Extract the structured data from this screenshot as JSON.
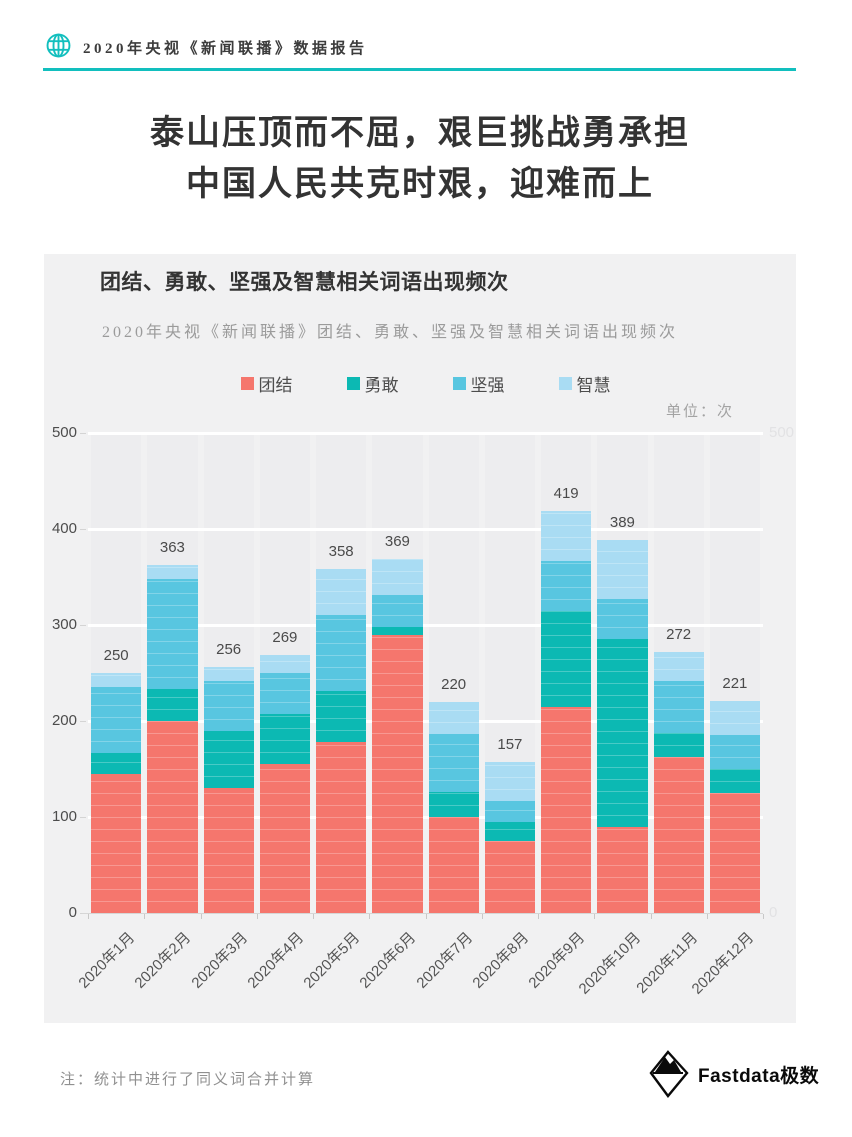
{
  "header": {
    "brand": "2020年央视《新闻联播》数据报告"
  },
  "title": {
    "line1": "泰山压顶而不屈，艰巨挑战勇承担",
    "line2": "中国人民共克时艰，迎难而上"
  },
  "panel": {
    "title": "团结、勇敢、坚强及智慧相关词语出现频次",
    "subtitle": "2020年央视《新闻联播》团结、勇敢、坚强及智慧相关词语出现频次",
    "unit_label": "单位：次"
  },
  "chart_data": {
    "type": "bar",
    "stacked": true,
    "title": "团结、勇敢、坚强及智慧相关词语出现频次",
    "subtitle": "2020年央视《新闻联播》团结、勇敢、坚强及智慧相关词语出现频次",
    "unit": "次",
    "categories": [
      "2020年1月",
      "2020年2月",
      "2020年3月",
      "2020年4月",
      "2020年5月",
      "2020年6月",
      "2020年7月",
      "2020年8月",
      "2020年9月",
      "2020年10月",
      "2020年11月",
      "2020年12月"
    ],
    "series": [
      {
        "name": "团结",
        "color": "#f5766d",
        "values": [
          145,
          200,
          130,
          155,
          178,
          290,
          100,
          75,
          215,
          90,
          162,
          125
        ]
      },
      {
        "name": "勇敢",
        "color": "#0cb9b3",
        "values": [
          22,
          33,
          60,
          52,
          53,
          8,
          26,
          20,
          100,
          195,
          25,
          25
        ]
      },
      {
        "name": "坚强",
        "color": "#58c6e0",
        "values": [
          68,
          115,
          52,
          43,
          79,
          33,
          60,
          22,
          52,
          42,
          55,
          35
        ]
      },
      {
        "name": "智慧",
        "color": "#a9dcf3",
        "values": [
          15,
          15,
          14,
          19,
          48,
          38,
          34,
          40,
          52,
          62,
          30,
          36
        ]
      }
    ],
    "totals": [
      250,
      363,
      256,
      269,
      358,
      369,
      220,
      157,
      419,
      389,
      272,
      221
    ],
    "ylim": [
      0,
      500
    ],
    "yticks": [
      0,
      100,
      200,
      300,
      400,
      500
    ],
    "yticks_right_visible": [
      500,
      0
    ],
    "grid": true,
    "legend_position": "top"
  },
  "note": "注：统计中进行了同义词合并计算",
  "logo": {
    "text": "Fastdata极数"
  },
  "colors": {
    "accent_teal": "#12bfbe",
    "panel_bg": "#f1f1f2",
    "band_bg": "#ededef",
    "title_text": "#333333",
    "axis_text": "#4c4c4c",
    "faint_axis_text": "#e2e2e4"
  }
}
